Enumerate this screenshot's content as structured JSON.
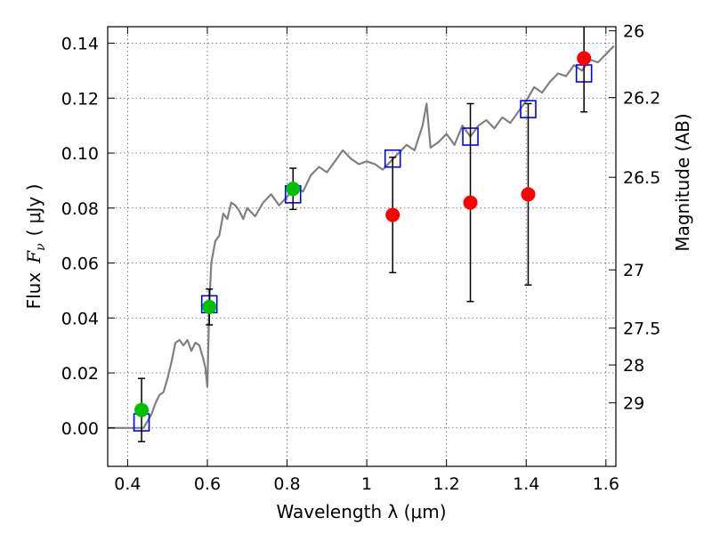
{
  "chart_data": {
    "type": "scatter",
    "xlabel": "Wavelength  λ (μm)",
    "ylabel": "Flux  F_ν  ( μJy )",
    "ylabel_parts": {
      "prefix": "Flux",
      "symbol": "F",
      "subscript": "ν",
      "unit": "( μJy )"
    },
    "y2label": "Magnitude (AB)",
    "xlim": [
      0.35,
      1.625
    ],
    "ylim": [
      -0.014,
      0.146
    ],
    "grid": true,
    "x_ticks": [
      0.4,
      0.6,
      0.8,
      1.0,
      1.2,
      1.4,
      1.6
    ],
    "x_tick_labels": [
      "0.4",
      "0.6",
      "0.8",
      "1",
      "1.2",
      "1.4",
      "1.6"
    ],
    "y_ticks": [
      0.0,
      0.02,
      0.04,
      0.06,
      0.08,
      0.1,
      0.12,
      0.14
    ],
    "y_tick_labels": [
      "0.00",
      "0.02",
      "0.04",
      "0.06",
      "0.08",
      "0.10",
      "0.12",
      "0.14"
    ],
    "y2_ticks": [
      {
        "label": "26",
        "flux": 0.1445
      },
      {
        "label": "26.2",
        "flux": 0.1202
      },
      {
        "label": "26.5",
        "flux": 0.0912
      },
      {
        "label": "27",
        "flux": 0.0575
      },
      {
        "label": "27.5",
        "flux": 0.0363
      },
      {
        "label": "28",
        "flux": 0.0229
      },
      {
        "label": "29",
        "flux": 0.0091
      }
    ],
    "series": [
      {
        "kind": "line",
        "color": "#808080",
        "x": [
          0.35,
          0.38,
          0.41,
          0.44,
          0.46,
          0.47,
          0.48,
          0.49,
          0.5,
          0.51,
          0.52,
          0.53,
          0.54,
          0.55,
          0.56,
          0.57,
          0.58,
          0.59,
          0.595,
          0.6,
          0.605,
          0.61,
          0.62,
          0.63,
          0.64,
          0.65,
          0.66,
          0.67,
          0.68,
          0.69,
          0.7,
          0.72,
          0.74,
          0.76,
          0.78,
          0.8,
          0.82,
          0.84,
          0.86,
          0.88,
          0.9,
          0.92,
          0.94,
          0.96,
          0.98,
          1.0,
          1.02,
          1.04,
          1.06,
          1.08,
          1.1,
          1.12,
          1.14,
          1.15,
          1.16,
          1.18,
          1.2,
          1.22,
          1.24,
          1.26,
          1.28,
          1.3,
          1.32,
          1.34,
          1.36,
          1.38,
          1.4,
          1.42,
          1.44,
          1.46,
          1.48,
          1.5,
          1.52,
          1.54,
          1.56,
          1.58,
          1.6,
          1.62
        ],
        "y": [
          0.0,
          0.0,
          0.0,
          0.0,
          0.005,
          0.009,
          0.012,
          0.013,
          0.018,
          0.024,
          0.031,
          0.032,
          0.03,
          0.032,
          0.028,
          0.031,
          0.03,
          0.025,
          0.022,
          0.015,
          0.045,
          0.06,
          0.068,
          0.07,
          0.078,
          0.076,
          0.082,
          0.081,
          0.079,
          0.076,
          0.08,
          0.077,
          0.082,
          0.085,
          0.081,
          0.084,
          0.088,
          0.086,
          0.092,
          0.095,
          0.093,
          0.097,
          0.101,
          0.098,
          0.096,
          0.097,
          0.096,
          0.094,
          0.097,
          0.1,
          0.103,
          0.101,
          0.11,
          0.118,
          0.102,
          0.104,
          0.107,
          0.103,
          0.11,
          0.106,
          0.11,
          0.112,
          0.109,
          0.113,
          0.111,
          0.115,
          0.119,
          0.124,
          0.122,
          0.126,
          0.129,
          0.128,
          0.132,
          0.13,
          0.134,
          0.133,
          0.136,
          0.139
        ]
      },
      {
        "kind": "model-squares",
        "color": "#0000ff",
        "x": [
          0.435,
          0.605,
          0.815,
          1.065,
          1.26,
          1.405,
          1.545
        ],
        "y": [
          0.002,
          0.045,
          0.085,
          0.098,
          0.106,
          0.116,
          0.129
        ]
      },
      {
        "kind": "detections",
        "color": "#00c000",
        "x": [
          0.435,
          0.605,
          0.815
        ],
        "y": [
          0.0065,
          0.044,
          0.087
        ],
        "yerr": [
          0.0115,
          0.0065,
          0.0075
        ]
      },
      {
        "kind": "upper-limits",
        "color": "#ff0000",
        "x": [
          1.065,
          1.26,
          1.405,
          1.545
        ],
        "y": [
          0.0775,
          0.082,
          0.085,
          0.1345
        ],
        "yerr": [
          0.021,
          0.036,
          0.033,
          0.0195
        ]
      }
    ]
  }
}
